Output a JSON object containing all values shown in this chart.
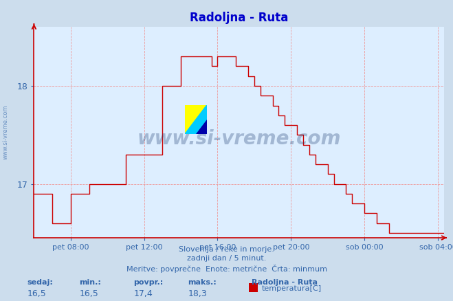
{
  "title": "Radoljna - Ruta",
  "title_color": "#0000cc",
  "bg_color": "#ccdded",
  "plot_bg_color": "#ddeeff",
  "line_color": "#cc0000",
  "grid_color": "#ee9999",
  "grid_linestyle": "--",
  "axis_color": "#cc0000",
  "ylabel_color": "#3366aa",
  "xlabel_color": "#3366aa",
  "text_color": "#3366aa",
  "ymin": 16.45,
  "ymax": 18.6,
  "yticks": [
    17,
    18
  ],
  "xtick_labels": [
    "pet 08:00",
    "pet 12:00",
    "pet 16:00",
    "pet 20:00",
    "sob 00:00",
    "sob 04:00"
  ],
  "subtitle1": "Slovenija / reke in morje.",
  "subtitle2": "zadnji dan / 5 minut.",
  "subtitle3": "Meritve: povprečne  Enote: metrične  Črta: minmum",
  "legend_station": "Radoljna - Ruta",
  "legend_label": "temperatura[C]",
  "stats_labels": [
    "sedaj:",
    "min.:",
    "povpr.:",
    "maks.:"
  ],
  "stats_values": [
    "16,5",
    "16,5",
    "17,4",
    "18,3"
  ],
  "watermark": "www.si-vreme.com",
  "n_points": 288,
  "start_hour": 6,
  "tick_hours": [
    8,
    12,
    16,
    20,
    24,
    28
  ],
  "temperature_data": [
    16.9,
    16.9,
    16.9,
    16.9,
    16.9,
    16.9,
    16.9,
    16.9,
    16.9,
    16.9,
    16.9,
    16.9,
    16.6,
    16.6,
    16.6,
    16.6,
    16.6,
    16.6,
    16.6,
    16.6,
    16.6,
    16.6,
    16.6,
    16.6,
    16.9,
    16.9,
    16.9,
    16.9,
    16.9,
    16.9,
    16.9,
    16.9,
    16.9,
    16.9,
    16.9,
    16.9,
    17.0,
    17.0,
    17.0,
    17.0,
    17.0,
    17.0,
    17.0,
    17.0,
    17.0,
    17.0,
    17.0,
    17.0,
    17.0,
    17.0,
    17.0,
    17.0,
    17.0,
    17.0,
    17.0,
    17.0,
    17.0,
    17.0,
    17.0,
    17.0,
    17.3,
    17.3,
    17.3,
    17.3,
    17.3,
    17.3,
    17.3,
    17.3,
    17.3,
    17.3,
    17.3,
    17.3,
    17.3,
    17.3,
    17.3,
    17.3,
    17.3,
    17.3,
    17.3,
    17.3,
    17.3,
    17.3,
    17.3,
    17.3,
    18.0,
    18.0,
    18.0,
    18.0,
    18.0,
    18.0,
    18.0,
    18.0,
    18.0,
    18.0,
    18.0,
    18.0,
    18.3,
    18.3,
    18.3,
    18.3,
    18.3,
    18.3,
    18.3,
    18.3,
    18.3,
    18.3,
    18.3,
    18.3,
    18.3,
    18.3,
    18.3,
    18.3,
    18.3,
    18.3,
    18.3,
    18.3,
    18.2,
    18.2,
    18.2,
    18.2,
    18.3,
    18.3,
    18.3,
    18.3,
    18.3,
    18.3,
    18.3,
    18.3,
    18.3,
    18.3,
    18.3,
    18.3,
    18.2,
    18.2,
    18.2,
    18.2,
    18.2,
    18.2,
    18.2,
    18.2,
    18.1,
    18.1,
    18.1,
    18.1,
    18.0,
    18.0,
    18.0,
    18.0,
    17.9,
    17.9,
    17.9,
    17.9,
    17.9,
    17.9,
    17.9,
    17.9,
    17.8,
    17.8,
    17.8,
    17.8,
    17.7,
    17.7,
    17.7,
    17.7,
    17.6,
    17.6,
    17.6,
    17.6,
    17.6,
    17.6,
    17.6,
    17.6,
    17.5,
    17.5,
    17.5,
    17.5,
    17.4,
    17.4,
    17.4,
    17.4,
    17.3,
    17.3,
    17.3,
    17.3,
    17.2,
    17.2,
    17.2,
    17.2,
    17.2,
    17.2,
    17.2,
    17.2,
    17.1,
    17.1,
    17.1,
    17.1,
    17.0,
    17.0,
    17.0,
    17.0,
    17.0,
    17.0,
    17.0,
    17.0,
    16.9,
    16.9,
    16.9,
    16.9,
    16.8,
    16.8,
    16.8,
    16.8,
    16.8,
    16.8,
    16.8,
    16.8,
    16.7,
    16.7,
    16.7,
    16.7,
    16.7,
    16.7,
    16.7,
    16.7,
    16.6,
    16.6,
    16.6,
    16.6,
    16.6,
    16.6,
    16.6,
    16.6,
    16.5,
    16.5,
    16.5,
    16.5,
    16.5,
    16.5,
    16.5,
    16.5,
    16.5,
    16.5,
    16.5,
    16.5,
    16.5,
    16.5,
    16.5,
    16.5,
    16.5,
    16.5,
    16.5,
    16.5,
    16.5,
    16.5,
    16.5,
    16.5,
    16.5,
    16.5,
    16.5,
    16.5,
    16.5,
    16.5,
    16.5,
    16.5,
    16.5,
    16.5,
    16.5,
    16.5,
    16.5
  ]
}
